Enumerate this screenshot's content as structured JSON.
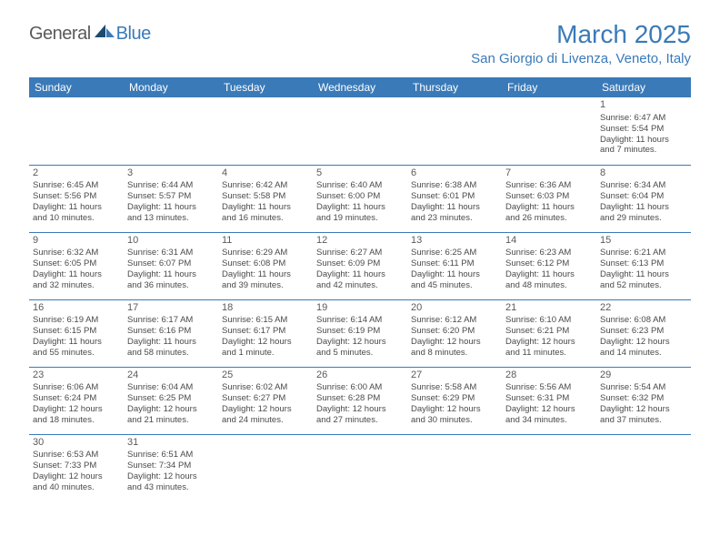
{
  "logo": {
    "text1": "General",
    "text2": "Blue",
    "text1_color": "#5a5a5a",
    "text2_color": "#3a7ab8",
    "shape_color_dark": "#1e4a6e",
    "shape_color_light": "#3a7ab8"
  },
  "title": "March 2025",
  "location": "San Giorgio di Livenza, Veneto, Italy",
  "colors": {
    "header_bg": "#3a7ab8",
    "header_text": "#ffffff",
    "border": "#3a7ab8",
    "body_text": "#4a4a4a",
    "daynum_text": "#5a5a5a",
    "background": "#ffffff"
  },
  "typography": {
    "title_fontsize": 28,
    "location_fontsize": 15,
    "dayheader_fontsize": 12,
    "cell_fontsize": 9.5,
    "daynum_fontsize": 11
  },
  "day_headers": [
    "Sunday",
    "Monday",
    "Tuesday",
    "Wednesday",
    "Thursday",
    "Friday",
    "Saturday"
  ],
  "weeks": [
    [
      null,
      null,
      null,
      null,
      null,
      null,
      {
        "n": "1",
        "sr": "Sunrise: 6:47 AM",
        "ss": "Sunset: 5:54 PM",
        "d1": "Daylight: 11 hours",
        "d2": "and 7 minutes."
      }
    ],
    [
      {
        "n": "2",
        "sr": "Sunrise: 6:45 AM",
        "ss": "Sunset: 5:56 PM",
        "d1": "Daylight: 11 hours",
        "d2": "and 10 minutes."
      },
      {
        "n": "3",
        "sr": "Sunrise: 6:44 AM",
        "ss": "Sunset: 5:57 PM",
        "d1": "Daylight: 11 hours",
        "d2": "and 13 minutes."
      },
      {
        "n": "4",
        "sr": "Sunrise: 6:42 AM",
        "ss": "Sunset: 5:58 PM",
        "d1": "Daylight: 11 hours",
        "d2": "and 16 minutes."
      },
      {
        "n": "5",
        "sr": "Sunrise: 6:40 AM",
        "ss": "Sunset: 6:00 PM",
        "d1": "Daylight: 11 hours",
        "d2": "and 19 minutes."
      },
      {
        "n": "6",
        "sr": "Sunrise: 6:38 AM",
        "ss": "Sunset: 6:01 PM",
        "d1": "Daylight: 11 hours",
        "d2": "and 23 minutes."
      },
      {
        "n": "7",
        "sr": "Sunrise: 6:36 AM",
        "ss": "Sunset: 6:03 PM",
        "d1": "Daylight: 11 hours",
        "d2": "and 26 minutes."
      },
      {
        "n": "8",
        "sr": "Sunrise: 6:34 AM",
        "ss": "Sunset: 6:04 PM",
        "d1": "Daylight: 11 hours",
        "d2": "and 29 minutes."
      }
    ],
    [
      {
        "n": "9",
        "sr": "Sunrise: 6:32 AM",
        "ss": "Sunset: 6:05 PM",
        "d1": "Daylight: 11 hours",
        "d2": "and 32 minutes."
      },
      {
        "n": "10",
        "sr": "Sunrise: 6:31 AM",
        "ss": "Sunset: 6:07 PM",
        "d1": "Daylight: 11 hours",
        "d2": "and 36 minutes."
      },
      {
        "n": "11",
        "sr": "Sunrise: 6:29 AM",
        "ss": "Sunset: 6:08 PM",
        "d1": "Daylight: 11 hours",
        "d2": "and 39 minutes."
      },
      {
        "n": "12",
        "sr": "Sunrise: 6:27 AM",
        "ss": "Sunset: 6:09 PM",
        "d1": "Daylight: 11 hours",
        "d2": "and 42 minutes."
      },
      {
        "n": "13",
        "sr": "Sunrise: 6:25 AM",
        "ss": "Sunset: 6:11 PM",
        "d1": "Daylight: 11 hours",
        "d2": "and 45 minutes."
      },
      {
        "n": "14",
        "sr": "Sunrise: 6:23 AM",
        "ss": "Sunset: 6:12 PM",
        "d1": "Daylight: 11 hours",
        "d2": "and 48 minutes."
      },
      {
        "n": "15",
        "sr": "Sunrise: 6:21 AM",
        "ss": "Sunset: 6:13 PM",
        "d1": "Daylight: 11 hours",
        "d2": "and 52 minutes."
      }
    ],
    [
      {
        "n": "16",
        "sr": "Sunrise: 6:19 AM",
        "ss": "Sunset: 6:15 PM",
        "d1": "Daylight: 11 hours",
        "d2": "and 55 minutes."
      },
      {
        "n": "17",
        "sr": "Sunrise: 6:17 AM",
        "ss": "Sunset: 6:16 PM",
        "d1": "Daylight: 11 hours",
        "d2": "and 58 minutes."
      },
      {
        "n": "18",
        "sr": "Sunrise: 6:15 AM",
        "ss": "Sunset: 6:17 PM",
        "d1": "Daylight: 12 hours",
        "d2": "and 1 minute."
      },
      {
        "n": "19",
        "sr": "Sunrise: 6:14 AM",
        "ss": "Sunset: 6:19 PM",
        "d1": "Daylight: 12 hours",
        "d2": "and 5 minutes."
      },
      {
        "n": "20",
        "sr": "Sunrise: 6:12 AM",
        "ss": "Sunset: 6:20 PM",
        "d1": "Daylight: 12 hours",
        "d2": "and 8 minutes."
      },
      {
        "n": "21",
        "sr": "Sunrise: 6:10 AM",
        "ss": "Sunset: 6:21 PM",
        "d1": "Daylight: 12 hours",
        "d2": "and 11 minutes."
      },
      {
        "n": "22",
        "sr": "Sunrise: 6:08 AM",
        "ss": "Sunset: 6:23 PM",
        "d1": "Daylight: 12 hours",
        "d2": "and 14 minutes."
      }
    ],
    [
      {
        "n": "23",
        "sr": "Sunrise: 6:06 AM",
        "ss": "Sunset: 6:24 PM",
        "d1": "Daylight: 12 hours",
        "d2": "and 18 minutes."
      },
      {
        "n": "24",
        "sr": "Sunrise: 6:04 AM",
        "ss": "Sunset: 6:25 PM",
        "d1": "Daylight: 12 hours",
        "d2": "and 21 minutes."
      },
      {
        "n": "25",
        "sr": "Sunrise: 6:02 AM",
        "ss": "Sunset: 6:27 PM",
        "d1": "Daylight: 12 hours",
        "d2": "and 24 minutes."
      },
      {
        "n": "26",
        "sr": "Sunrise: 6:00 AM",
        "ss": "Sunset: 6:28 PM",
        "d1": "Daylight: 12 hours",
        "d2": "and 27 minutes."
      },
      {
        "n": "27",
        "sr": "Sunrise: 5:58 AM",
        "ss": "Sunset: 6:29 PM",
        "d1": "Daylight: 12 hours",
        "d2": "and 30 minutes."
      },
      {
        "n": "28",
        "sr": "Sunrise: 5:56 AM",
        "ss": "Sunset: 6:31 PM",
        "d1": "Daylight: 12 hours",
        "d2": "and 34 minutes."
      },
      {
        "n": "29",
        "sr": "Sunrise: 5:54 AM",
        "ss": "Sunset: 6:32 PM",
        "d1": "Daylight: 12 hours",
        "d2": "and 37 minutes."
      }
    ],
    [
      {
        "n": "30",
        "sr": "Sunrise: 6:53 AM",
        "ss": "Sunset: 7:33 PM",
        "d1": "Daylight: 12 hours",
        "d2": "and 40 minutes."
      },
      {
        "n": "31",
        "sr": "Sunrise: 6:51 AM",
        "ss": "Sunset: 7:34 PM",
        "d1": "Daylight: 12 hours",
        "d2": "and 43 minutes."
      },
      null,
      null,
      null,
      null,
      null
    ]
  ]
}
